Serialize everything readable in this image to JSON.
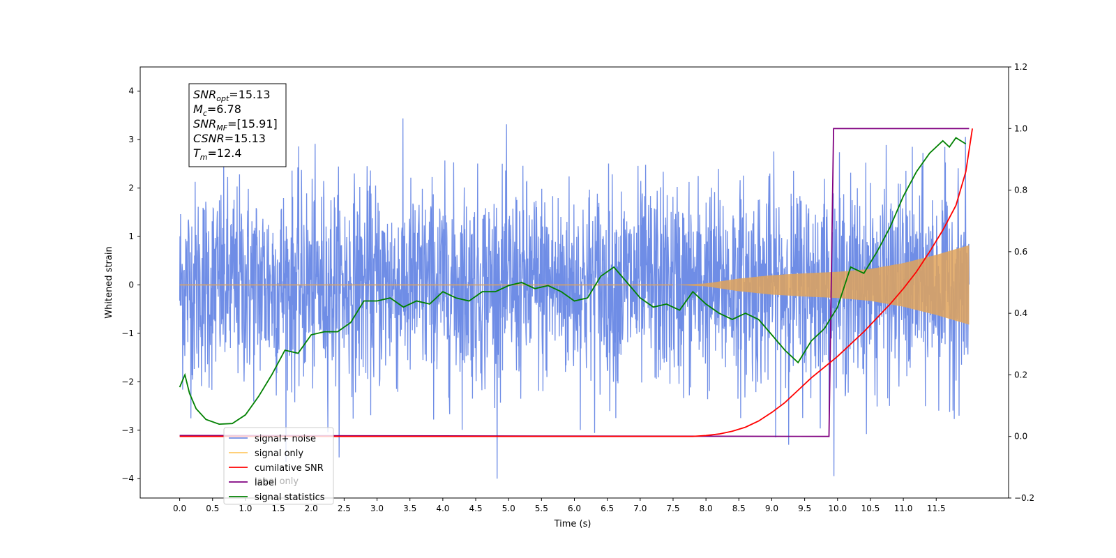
{
  "chart_data": {
    "type": "line",
    "xlabel": "Time (s)",
    "ylabel": "Whitened strain",
    "xlim": [
      -0.6,
      12.6
    ],
    "ylim": [
      -4.4,
      4.5
    ],
    "y2lim": [
      -0.2,
      1.2
    ],
    "x_ticks": [
      "0.0",
      "0.5",
      "1.0",
      "1.5",
      "2.0",
      "2.5",
      "3.0",
      "3.5",
      "4.0",
      "4.5",
      "5.0",
      "5.5",
      "6.0",
      "6.5",
      "7.0",
      "7.5",
      "8.0",
      "8.5",
      "9.0",
      "9.5",
      "10.0",
      "10.5",
      "11.0",
      "11.5"
    ],
    "y_ticks": [
      "−4",
      "−3",
      "−2",
      "−1",
      "0",
      "1",
      "2",
      "3",
      "4"
    ],
    "y2_ticks": [
      "−0.2",
      "0.0",
      "0.2",
      "0.4",
      "0.6",
      "0.8",
      "1.0",
      "1.2"
    ],
    "colors": {
      "noise": "#6f8de6",
      "signal": "#e0a35a",
      "cumulative_snr": "#ff0000",
      "label": "#800080",
      "statistics": "#008000"
    },
    "series": [
      {
        "name": "signal+ noise",
        "axis": "left",
        "description_values": {
          "t_start": 0.0,
          "t_end": 12.0,
          "typical_amplitude": 1.0,
          "peaks": [
            4.1,
            -4.0
          ]
        }
      },
      {
        "name": "signal only",
        "axis": "left",
        "envelope_points": [
          [
            0.0,
            0.0
          ],
          [
            7.5,
            0.0
          ],
          [
            8.0,
            0.03
          ],
          [
            8.5,
            0.13
          ],
          [
            9.0,
            0.2
          ],
          [
            9.5,
            0.24
          ],
          [
            10.0,
            0.27
          ],
          [
            10.5,
            0.33
          ],
          [
            11.0,
            0.45
          ],
          [
            11.5,
            0.62
          ],
          [
            12.0,
            0.82
          ]
        ]
      },
      {
        "name": "cumilative SNR",
        "axis": "right",
        "points": [
          [
            0.0,
            0.0
          ],
          [
            7.8,
            0.0
          ],
          [
            8.0,
            0.003
          ],
          [
            8.2,
            0.008
          ],
          [
            8.4,
            0.017
          ],
          [
            8.6,
            0.03
          ],
          [
            8.8,
            0.05
          ],
          [
            9.0,
            0.078
          ],
          [
            9.2,
            0.11
          ],
          [
            9.4,
            0.15
          ],
          [
            9.6,
            0.19
          ],
          [
            9.8,
            0.225
          ],
          [
            10.0,
            0.26
          ],
          [
            10.2,
            0.3
          ],
          [
            10.4,
            0.34
          ],
          [
            10.6,
            0.385
          ],
          [
            10.8,
            0.43
          ],
          [
            11.0,
            0.48
          ],
          [
            11.2,
            0.535
          ],
          [
            11.4,
            0.6
          ],
          [
            11.6,
            0.67
          ],
          [
            11.8,
            0.75
          ],
          [
            11.95,
            0.86
          ],
          [
            12.05,
            1.0
          ]
        ]
      },
      {
        "name": "label",
        "axis": "right",
        "points": [
          [
            0.0,
            0.003
          ],
          [
            9.87,
            0.0
          ],
          [
            9.94,
            1.0
          ],
          [
            12.0,
            1.0
          ]
        ]
      },
      {
        "name": "signal statistics",
        "axis": "right",
        "points": [
          [
            0.0,
            0.16
          ],
          [
            0.08,
            0.2
          ],
          [
            0.15,
            0.14
          ],
          [
            0.25,
            0.09
          ],
          [
            0.4,
            0.055
          ],
          [
            0.6,
            0.04
          ],
          [
            0.8,
            0.042
          ],
          [
            1.0,
            0.07
          ],
          [
            1.2,
            0.13
          ],
          [
            1.4,
            0.2
          ],
          [
            1.6,
            0.28
          ],
          [
            1.8,
            0.27
          ],
          [
            2.0,
            0.33
          ],
          [
            2.2,
            0.34
          ],
          [
            2.4,
            0.34
          ],
          [
            2.6,
            0.37
          ],
          [
            2.8,
            0.44
          ],
          [
            3.0,
            0.44
          ],
          [
            3.2,
            0.45
          ],
          [
            3.4,
            0.42
          ],
          [
            3.6,
            0.44
          ],
          [
            3.8,
            0.43
          ],
          [
            4.0,
            0.47
          ],
          [
            4.2,
            0.45
          ],
          [
            4.4,
            0.44
          ],
          [
            4.6,
            0.47
          ],
          [
            4.8,
            0.47
          ],
          [
            5.0,
            0.49
          ],
          [
            5.2,
            0.5
          ],
          [
            5.4,
            0.48
          ],
          [
            5.6,
            0.49
          ],
          [
            5.8,
            0.47
          ],
          [
            6.0,
            0.44
          ],
          [
            6.2,
            0.45
          ],
          [
            6.4,
            0.52
          ],
          [
            6.6,
            0.55
          ],
          [
            6.8,
            0.5
          ],
          [
            7.0,
            0.45
          ],
          [
            7.2,
            0.42
          ],
          [
            7.4,
            0.43
          ],
          [
            7.6,
            0.41
          ],
          [
            7.8,
            0.47
          ],
          [
            8.0,
            0.43
          ],
          [
            8.2,
            0.4
          ],
          [
            8.4,
            0.38
          ],
          [
            8.6,
            0.4
          ],
          [
            8.8,
            0.38
          ],
          [
            9.0,
            0.33
          ],
          [
            9.2,
            0.28
          ],
          [
            9.4,
            0.24
          ],
          [
            9.6,
            0.31
          ],
          [
            9.8,
            0.35
          ],
          [
            10.0,
            0.42
          ],
          [
            10.2,
            0.55
          ],
          [
            10.4,
            0.53
          ],
          [
            10.6,
            0.6
          ],
          [
            10.8,
            0.68
          ],
          [
            11.0,
            0.78
          ],
          [
            11.2,
            0.86
          ],
          [
            11.4,
            0.92
          ],
          [
            11.6,
            0.96
          ],
          [
            11.7,
            0.94
          ],
          [
            11.8,
            0.97
          ],
          [
            11.95,
            0.95
          ]
        ]
      }
    ],
    "annotation": {
      "lines": [
        {
          "label": "SNR",
          "sub": "opt",
          "value": "=15.13"
        },
        {
          "label": "M",
          "sub": "c",
          "value": "=6.78"
        },
        {
          "label": "SNR",
          "sub": "MF",
          "value": "=[15.91]"
        },
        {
          "label": "CSNR",
          "sub": "",
          "value": "=15.13"
        },
        {
          "label": "T",
          "sub": "m",
          "value": "=12.4"
        }
      ]
    },
    "legend": {
      "placement": "lower-left",
      "entries": [
        {
          "label": "signal+ noise",
          "color": "#6f8de6"
        },
        {
          "label": "signal only",
          "color": "#ffc966"
        },
        {
          "label": "cumilative SNR",
          "color": "#ff0000"
        },
        {
          "label": "label",
          "color": "#800080"
        },
        {
          "label": "signal statistics",
          "color": "#008000"
        }
      ],
      "overlapped_text": "label only"
    },
    "grid": false
  }
}
